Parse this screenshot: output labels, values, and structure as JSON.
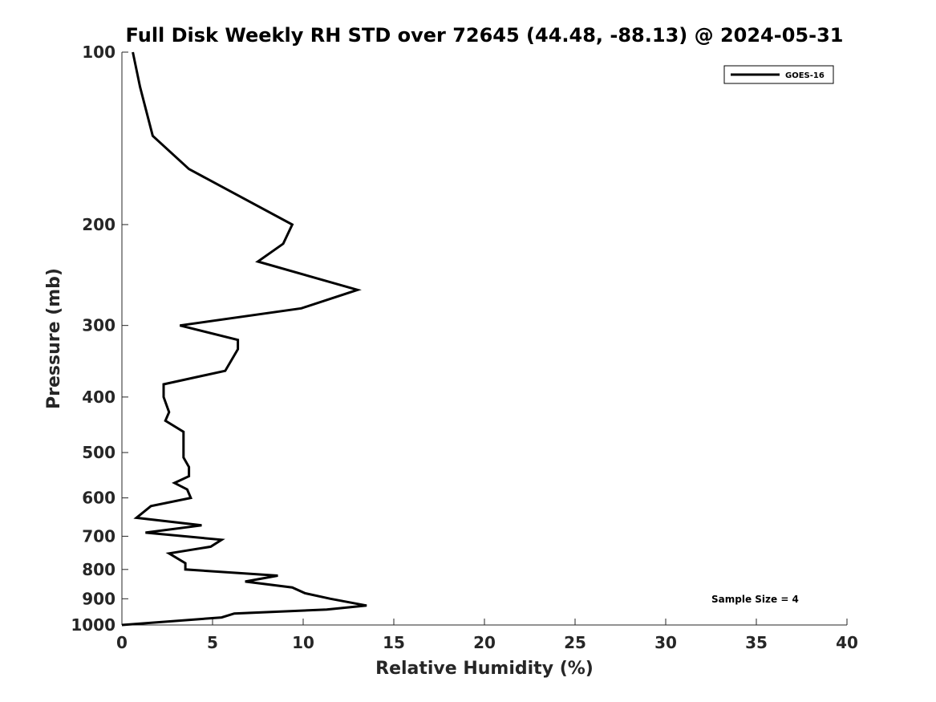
{
  "chart_data": {
    "type": "line",
    "title": "Full Disk Weekly RH STD over 72645 (44.48, -88.13) @ 2024-05-31",
    "xlabel": "Relative Humidity (%)",
    "ylabel": "Pressure (mb)",
    "xlim": [
      0,
      40
    ],
    "ylim": [
      100,
      1000
    ],
    "yscale": "log",
    "y_reversed": true,
    "grid": false,
    "legend_position": "top-right",
    "x_ticks": [
      "0",
      "5",
      "10",
      "15",
      "20",
      "25",
      "30",
      "35",
      "40"
    ],
    "y_ticks": [
      "100",
      "200",
      "300",
      "400",
      "500",
      "600",
      "700",
      "800",
      "900",
      "1000"
    ],
    "annotation": "Sample Size = 4",
    "series": [
      {
        "name": "GOES-16",
        "color": "#000000",
        "x": [
          0.6,
          1.0,
          1.7,
          3.7,
          9.4,
          8.9,
          7.5,
          13.0,
          9.9,
          3.2,
          6.4,
          6.4,
          5.7,
          2.3,
          2.3,
          2.6,
          2.4,
          3.4,
          3.4,
          3.4,
          3.7,
          3.7,
          2.9,
          3.6,
          3.8,
          1.6,
          0.8,
          4.4,
          1.3,
          5.5,
          4.9,
          2.6,
          3.5,
          3.5,
          8.6,
          6.8,
          9.4,
          10.1,
          11.5,
          13.5,
          11.3,
          6.2,
          5.5,
          0.0
        ],
        "y": [
          100,
          115,
          140,
          160,
          200,
          216,
          232,
          260,
          280,
          300,
          318,
          330,
          360,
          380,
          400,
          425,
          440,
          460,
          485,
          510,
          530,
          550,
          565,
          580,
          600,
          620,
          650,
          670,
          690,
          710,
          730,
          750,
          780,
          800,
          820,
          840,
          860,
          880,
          900,
          925,
          940,
          955,
          970,
          1000
        ]
      }
    ]
  }
}
